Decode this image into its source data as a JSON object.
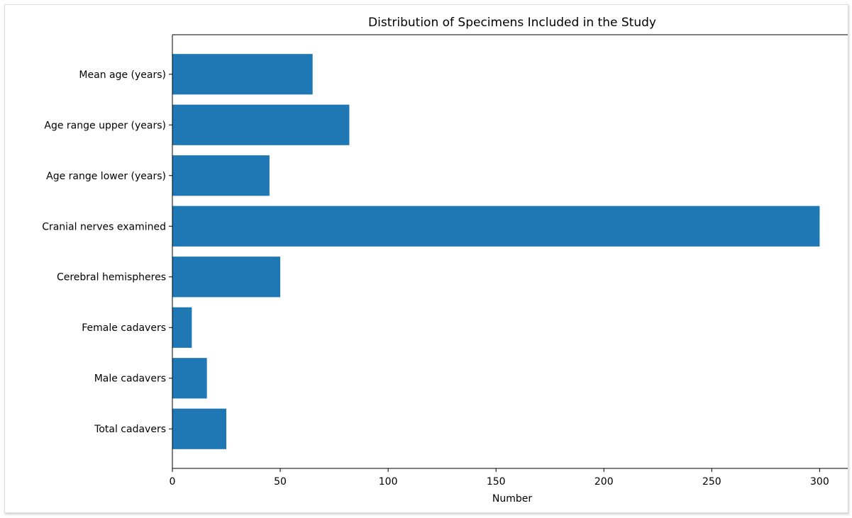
{
  "chart_data": {
    "type": "bar",
    "orientation": "horizontal",
    "title": "Distribution of Specimens Included in the Study",
    "xlabel": "Number",
    "ylabel": "",
    "categories": [
      "Total cadavers",
      "Male cadavers",
      "Female cadavers",
      "Cerebral hemispheres",
      "Cranial nerves examined",
      "Age range lower (years)",
      "Age range upper (years)",
      "Mean age (years)"
    ],
    "values": [
      25,
      16,
      9,
      50,
      300,
      45,
      82,
      65
    ],
    "xlim": [
      0,
      315
    ],
    "xticks": [
      0,
      50,
      100,
      150,
      200,
      250,
      300
    ],
    "grid": false,
    "bar_color": "#1f77b4"
  }
}
